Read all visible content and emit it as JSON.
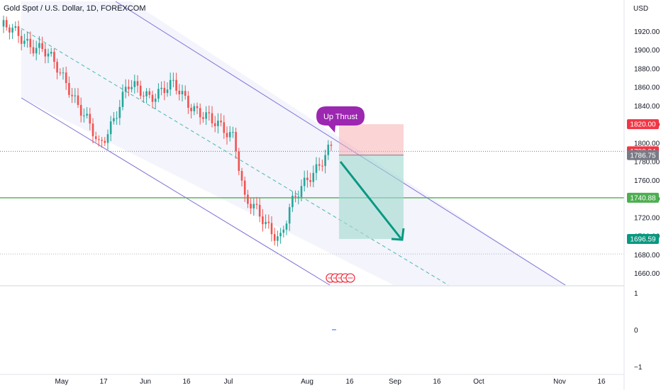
{
  "chart_data": {
    "type": "candlestick",
    "title": "Gold Spot / U.S. Dollar, 1D, FOREXCOM",
    "currency": "USD",
    "price_axis": {
      "ticks": [
        "1920.00",
        "1900.00",
        "1880.00",
        "1860.00",
        "1840.00",
        "1820.00",
        "1800.00",
        "1780.00",
        "1760.00",
        "1740.00",
        "1720.00",
        "1700.00",
        "1680.00",
        "1660.00"
      ],
      "range": [
        1648,
        1932
      ]
    },
    "indicator_axis": {
      "ticks": [
        "1",
        "0",
        "−1"
      ]
    },
    "time_axis": {
      "labels": [
        "May",
        "17",
        "Jun",
        "16",
        "Jul",
        "Aug",
        "16",
        "Sep",
        "16",
        "Oct",
        "Nov",
        "16"
      ]
    },
    "price_tags": [
      {
        "label": "1820.00",
        "value": 1820.0,
        "color": "#f23645"
      },
      {
        "label": "1790.84",
        "value": 1790.84,
        "color": "#f23645"
      },
      {
        "label": "1786.75",
        "value": 1786.75,
        "color": "#787b86"
      },
      {
        "label": "1740.88",
        "value": 1740.88,
        "color": "#4caf50"
      },
      {
        "label": "1696.59",
        "value": 1696.59,
        "color": "#089981"
      }
    ],
    "horizontal_lines": [
      {
        "value": 1740.88,
        "color": "#4caf50",
        "style": "solid"
      },
      {
        "value": 1790.84,
        "color": "#787b86",
        "style": "dotted"
      },
      {
        "value": 1680.5,
        "color": "#b2b5be",
        "style": "dotted"
      }
    ],
    "annotation": {
      "text": "Up Thrust",
      "color": "#9c27b0"
    },
    "colors": {
      "up": "#26a69a",
      "down": "#ef5350",
      "channel": "#7e6fd6",
      "midline": "#4db6ac"
    }
  }
}
